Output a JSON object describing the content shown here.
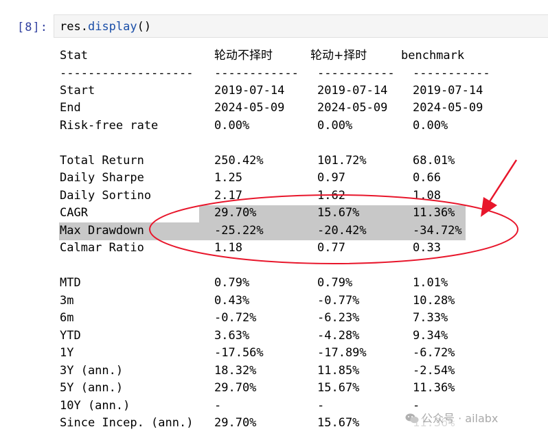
{
  "cell": {
    "prompt": "[8]:",
    "code": {
      "obj": "res",
      "dot": ".",
      "method": "display",
      "parens": "()"
    }
  },
  "table": {
    "header": [
      "Stat",
      "轮动不择时",
      "轮动+择时",
      "benchmark"
    ],
    "separators": [
      "-------------------",
      "------------",
      "-----------",
      "-----------"
    ],
    "rows": [
      {
        "stat": "Start",
        "v": [
          "2019-07-14",
          "2019-07-14",
          "2019-07-14"
        ]
      },
      {
        "stat": "End",
        "v": [
          "2024-05-09",
          "2024-05-09",
          "2024-05-09"
        ]
      },
      {
        "stat": "Risk-free rate",
        "v": [
          "0.00%",
          "0.00%",
          "0.00%"
        ]
      },
      {
        "stat": "Total Return",
        "v": [
          "250.42%",
          "101.72%",
          "68.01%"
        ]
      },
      {
        "stat": "Daily Sharpe",
        "v": [
          "1.25",
          "0.97",
          "0.66"
        ]
      },
      {
        "stat": "Daily Sortino",
        "v": [
          "2.17",
          "1.62",
          "1.08"
        ]
      },
      {
        "stat": "CAGR",
        "v": [
          "29.70%",
          "15.67%",
          "11.36%"
        ]
      },
      {
        "stat": "Max Drawdown",
        "v": [
          "-25.22%",
          "-20.42%",
          "-34.72%"
        ]
      },
      {
        "stat": "Calmar Ratio",
        "v": [
          "1.18",
          "0.77",
          "0.33"
        ]
      },
      {
        "stat": "MTD",
        "v": [
          "0.79%",
          "0.79%",
          "1.01%"
        ]
      },
      {
        "stat": "3m",
        "v": [
          "0.43%",
          "-0.77%",
          "10.28%"
        ]
      },
      {
        "stat": "6m",
        "v": [
          "-0.72%",
          "-6.23%",
          "7.33%"
        ]
      },
      {
        "stat": "YTD",
        "v": [
          "3.63%",
          "-4.28%",
          "9.34%"
        ]
      },
      {
        "stat": "1Y",
        "v": [
          "-17.56%",
          "-17.89%",
          "-6.72%"
        ]
      },
      {
        "stat": "3Y (ann.)",
        "v": [
          "18.32%",
          "11.85%",
          "-2.54%"
        ]
      },
      {
        "stat": "5Y (ann.)",
        "v": [
          "29.70%",
          "15.67%",
          "11.36%"
        ]
      },
      {
        "stat": "10Y (ann.)",
        "v": [
          "-",
          "-",
          "-"
        ]
      },
      {
        "stat": "Since Incep. (ann.)",
        "v": [
          "29.70%",
          "15.67%",
          "11.36%"
        ]
      }
    ]
  },
  "watermark": {
    "text": "公众号 · ailabx"
  },
  "colors": {
    "prompt": "#303f9f",
    "annotation": "#e8162b",
    "highlight": "#c8c8c8"
  }
}
